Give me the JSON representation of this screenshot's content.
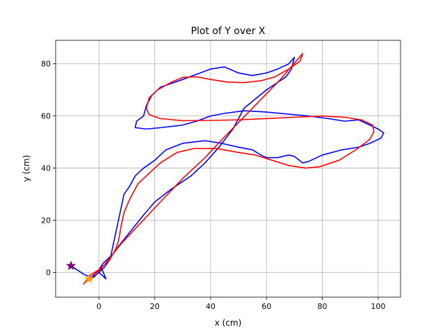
{
  "chart_data": {
    "type": "line",
    "title": "Plot of Y over X",
    "xlabel": "x (cm)",
    "ylabel": "y (cm)",
    "xlim": [
      -15.5,
      108
    ],
    "ylim": [
      -9.5,
      89
    ],
    "x_ticks": [
      0,
      20,
      40,
      60,
      80,
      100
    ],
    "y_ticks": [
      0,
      20,
      40,
      60,
      80
    ],
    "grid": true,
    "series": [
      {
        "color": "#0000ff",
        "points": [
          [
            -10,
            2.5
          ],
          [
            -5,
            -1
          ],
          [
            -2,
            -2
          ],
          [
            0,
            0
          ],
          [
            1,
            1.5
          ],
          [
            2.5,
            -2.5
          ],
          [
            1,
            -1
          ],
          [
            0,
            0
          ],
          [
            2,
            2
          ],
          [
            4,
            5
          ],
          [
            5,
            10
          ],
          [
            6,
            15
          ],
          [
            7,
            20
          ],
          [
            8,
            25
          ],
          [
            9,
            30
          ],
          [
            11,
            33
          ],
          [
            13,
            37
          ],
          [
            16,
            40
          ],
          [
            20,
            43
          ],
          [
            24,
            47
          ],
          [
            30,
            49.5
          ],
          [
            38,
            50.5
          ],
          [
            44,
            49.5
          ],
          [
            50,
            48
          ],
          [
            55,
            47
          ],
          [
            58,
            45
          ],
          [
            60,
            44
          ],
          [
            64,
            44
          ],
          [
            68,
            45
          ],
          [
            70,
            44.5
          ],
          [
            73,
            42
          ],
          [
            75,
            42.5
          ],
          [
            80,
            45
          ],
          [
            87,
            47
          ],
          [
            93,
            48
          ],
          [
            97,
            49.5
          ],
          [
            101,
            51.5
          ],
          [
            102,
            53.5
          ],
          [
            100,
            55
          ],
          [
            96,
            57
          ],
          [
            93,
            58.5
          ],
          [
            88,
            58
          ],
          [
            82,
            59
          ],
          [
            75,
            60
          ],
          [
            60,
            61.5
          ],
          [
            52,
            62
          ],
          [
            45,
            61
          ],
          [
            40,
            60
          ],
          [
            35,
            58
          ],
          [
            30,
            56.5
          ],
          [
            22,
            55.5
          ],
          [
            17,
            55
          ],
          [
            13,
            55.5
          ],
          [
            13.5,
            58
          ],
          [
            16,
            60
          ],
          [
            17,
            64
          ],
          [
            19,
            68
          ],
          [
            22,
            71
          ],
          [
            30,
            74
          ],
          [
            35,
            76
          ],
          [
            40,
            78
          ],
          [
            45,
            78.8
          ],
          [
            50,
            76.5
          ],
          [
            55,
            75.5
          ],
          [
            60,
            76.5
          ],
          [
            64,
            78
          ],
          [
            68,
            80
          ],
          [
            70,
            82.5
          ],
          [
            69,
            78
          ],
          [
            67,
            75
          ],
          [
            60,
            70
          ],
          [
            52,
            63
          ],
          [
            48,
            55
          ],
          [
            43,
            48
          ],
          [
            38,
            42
          ],
          [
            33,
            37
          ],
          [
            26,
            32
          ],
          [
            20,
            27
          ],
          [
            16,
            22
          ],
          [
            13,
            18
          ],
          [
            10,
            14
          ],
          [
            7,
            10
          ],
          [
            5,
            7
          ],
          [
            3,
            5
          ],
          [
            1.5,
            3.5
          ],
          [
            0,
            1
          ],
          [
            -1,
            0
          ],
          [
            -2.5,
            -2.5
          ]
        ]
      },
      {
        "color": "#ff0000",
        "points": [
          [
            -5.5,
            -4.5
          ],
          [
            -3,
            -1
          ],
          [
            0,
            1
          ],
          [
            2,
            3
          ],
          [
            4,
            5
          ],
          [
            6,
            9
          ],
          [
            7,
            12
          ],
          [
            8,
            18
          ],
          [
            9,
            23
          ],
          [
            11,
            28
          ],
          [
            14,
            34
          ],
          [
            18,
            38
          ],
          [
            22,
            42
          ],
          [
            28,
            46
          ],
          [
            34,
            47.5
          ],
          [
            42,
            47.5
          ],
          [
            50,
            46
          ],
          [
            56,
            45
          ],
          [
            62,
            43
          ],
          [
            68,
            41
          ],
          [
            74,
            40
          ],
          [
            79,
            40.5
          ],
          [
            86,
            43
          ],
          [
            92,
            47
          ],
          [
            97,
            51
          ],
          [
            98.5,
            54
          ],
          [
            98,
            56.5
          ],
          [
            94,
            58.5
          ],
          [
            88,
            59.5
          ],
          [
            80,
            60
          ],
          [
            70,
            59.5
          ],
          [
            60,
            59
          ],
          [
            50,
            58.5
          ],
          [
            40,
            58.3
          ],
          [
            30,
            58.2
          ],
          [
            22,
            59
          ],
          [
            18,
            60.5
          ],
          [
            17,
            63
          ],
          [
            18,
            67
          ],
          [
            21,
            70
          ],
          [
            26,
            73
          ],
          [
            30,
            74.8
          ],
          [
            35,
            75
          ],
          [
            40,
            74
          ],
          [
            46,
            73
          ],
          [
            52,
            72.8
          ],
          [
            58,
            73.5
          ],
          [
            63,
            75
          ],
          [
            68,
            78
          ],
          [
            72,
            81
          ],
          [
            73,
            84
          ],
          [
            65,
            74
          ],
          [
            55,
            63
          ],
          [
            45,
            52
          ],
          [
            38,
            44
          ],
          [
            30,
            36
          ],
          [
            22,
            27
          ],
          [
            15,
            19
          ],
          [
            8,
            11
          ],
          [
            2,
            3
          ],
          [
            0,
            0.5
          ],
          [
            -2,
            -1
          ],
          [
            -3.5,
            -3
          ]
        ]
      }
    ],
    "markers": [
      {
        "shape": "star",
        "color": "#800080",
        "x": -10,
        "y": 2.5
      },
      {
        "shape": "star",
        "color": "#ffa500",
        "x": -3.5,
        "y": -2.5
      }
    ]
  }
}
